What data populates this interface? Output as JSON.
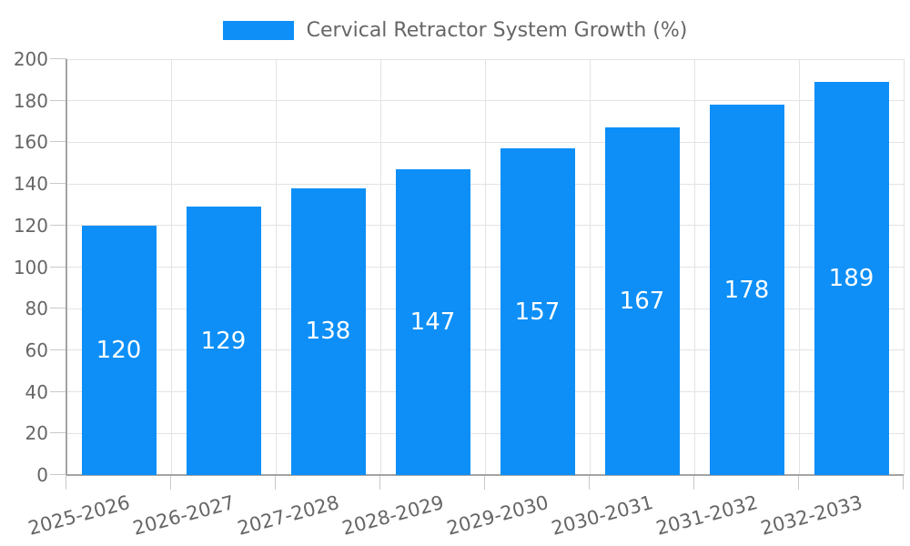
{
  "legend": {
    "position": "top-center",
    "items": [
      {
        "label": "Cervical Retractor System Growth (%)",
        "swatch": "bar-color"
      }
    ]
  },
  "colors": {
    "bar": "#0d8ff7",
    "grid": "#e3e3e3",
    "axis": "#a3a3a3",
    "tick": "#c9c9c9",
    "text": "#666666",
    "value_text": "#ffffff",
    "background": "#ffffff"
  },
  "chart_data": {
    "type": "bar",
    "title": "Cervical Retractor System Growth (%)",
    "categories": [
      "2025-2026",
      "2026-2027",
      "2027-2028",
      "2028-2029",
      "2029-2030",
      "2030-2031",
      "2031-2032",
      "2032-2033"
    ],
    "values": [
      120,
      129,
      138,
      147,
      157,
      167,
      178,
      189
    ],
    "xlabel": "",
    "ylabel": "",
    "ylim": [
      0,
      200
    ],
    "yticks": [
      0,
      20,
      40,
      60,
      80,
      100,
      120,
      140,
      160,
      180,
      200
    ],
    "grid": true,
    "legend_position": "top",
    "bar_value_labels": "inside-center",
    "x_label_rotation_deg": -15
  }
}
